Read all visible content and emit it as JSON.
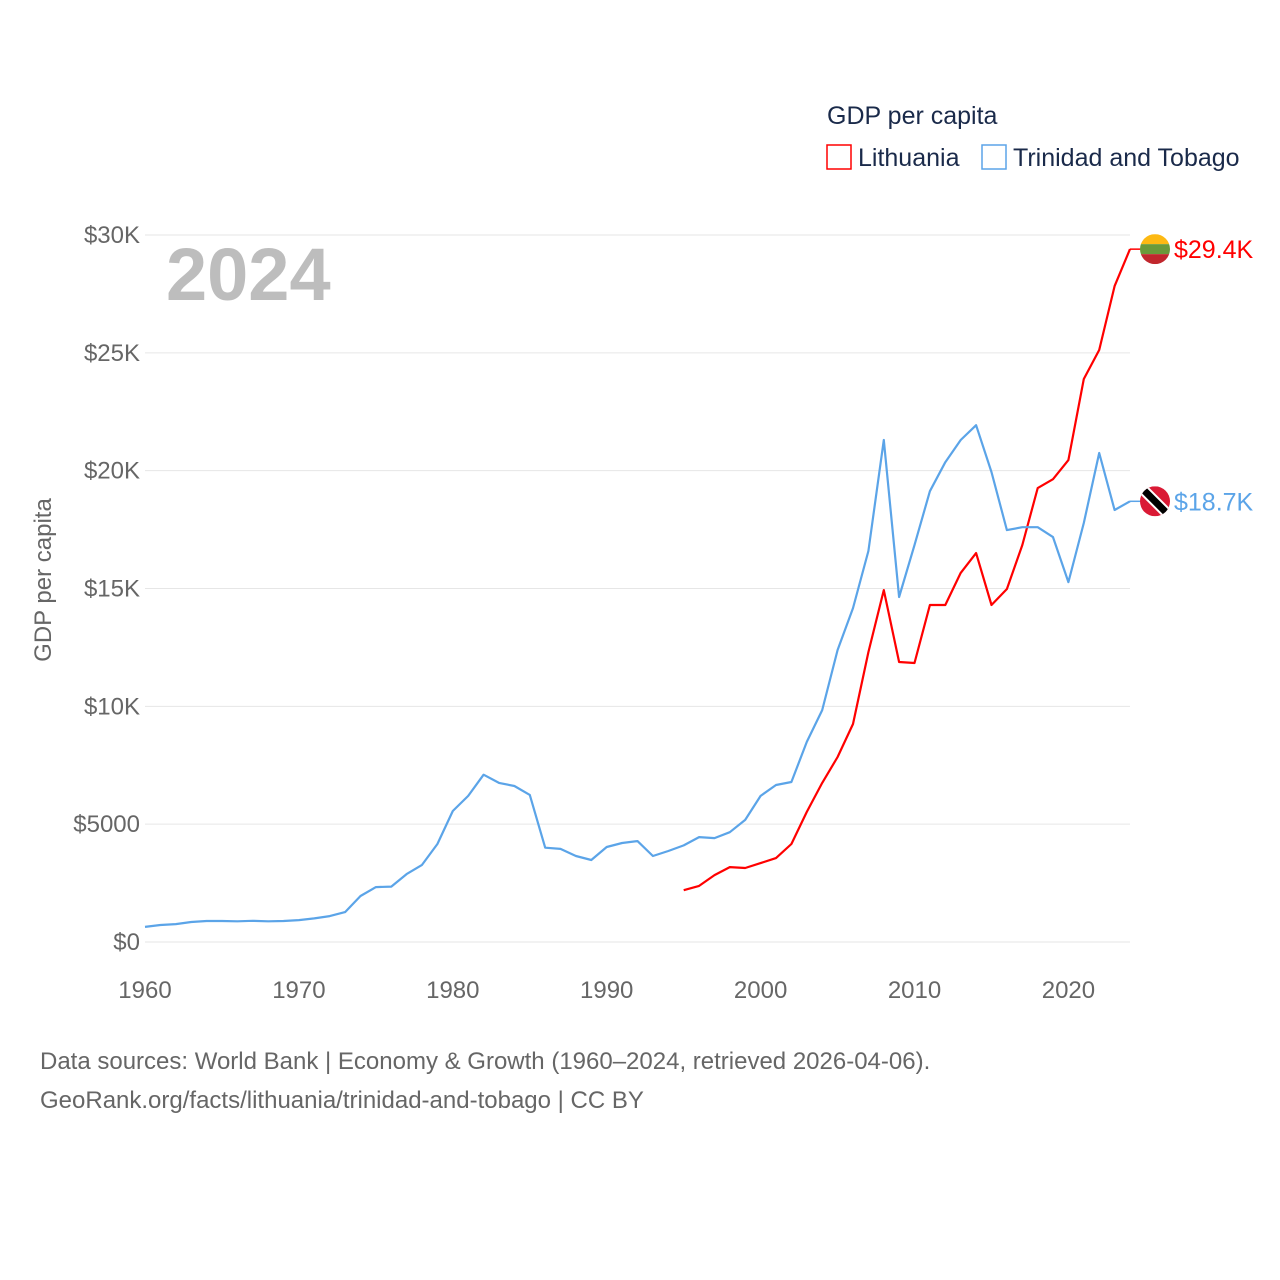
{
  "chart_data": {
    "type": "line",
    "year_label": "2024",
    "ylabel": "GDP per capita",
    "legend_title": "GDP per capita",
    "legend_position": "top-right",
    "xlim": [
      1960,
      2024
    ],
    "ylim": [
      0,
      30000
    ],
    "x_ticks": [
      1960,
      1970,
      1980,
      1990,
      2000,
      2010,
      2020
    ],
    "x_tick_labels": [
      "1960",
      "1970",
      "1980",
      "1990",
      "2000",
      "2010",
      "2020"
    ],
    "y_ticks": [
      0,
      5000,
      10000,
      15000,
      20000,
      25000,
      30000
    ],
    "y_tick_labels": [
      "$0",
      "$5000",
      "$10K",
      "$15K",
      "$20K",
      "$25K",
      "$30K"
    ],
    "grid": true,
    "series": [
      {
        "name": "Lithuania",
        "color": "#ff0000",
        "end_label": "$29.4K",
        "flag": "lithuania-flag",
        "start_year": 1995,
        "values": [
          2200,
          2380,
          2840,
          3180,
          3140,
          3350,
          3560,
          4160,
          5520,
          6750,
          7850,
          9250,
          12300,
          14930,
          11880,
          11840,
          14300,
          14300,
          15660,
          16500,
          14300,
          14980,
          16840,
          19260,
          19640,
          20450,
          23890,
          25120,
          27830,
          29400
        ]
      },
      {
        "name": "Trinidad and Tobago",
        "color": "#5ba4e8",
        "end_label": "$18.7K",
        "flag": "trinidad-and-tobago-flag",
        "start_year": 1960,
        "values": [
          640,
          720,
          760,
          850,
          890,
          890,
          880,
          900,
          880,
          890,
          930,
          1000,
          1100,
          1270,
          1950,
          2330,
          2350,
          2880,
          3270,
          4160,
          5560,
          6200,
          7100,
          6750,
          6620,
          6240,
          4000,
          3950,
          3650,
          3480,
          4030,
          4200,
          4280,
          3650,
          3860,
          4100,
          4450,
          4410,
          4660,
          5180,
          6200,
          6660,
          6790,
          8490,
          9840,
          12390,
          14170,
          16590,
          21300,
          14640,
          16840,
          19130,
          20360,
          21300,
          21930,
          19940,
          17480,
          17600,
          17600,
          17180,
          15270,
          17780,
          20750,
          18330,
          18700
        ]
      }
    ]
  },
  "footer": {
    "line1": "Data sources: World Bank | Economy & Growth (1960–2024, retrieved 2026-04-06).",
    "line2": "GeoRank.org/facts/lithuania/trinidad-and-tobago | CC BY"
  }
}
